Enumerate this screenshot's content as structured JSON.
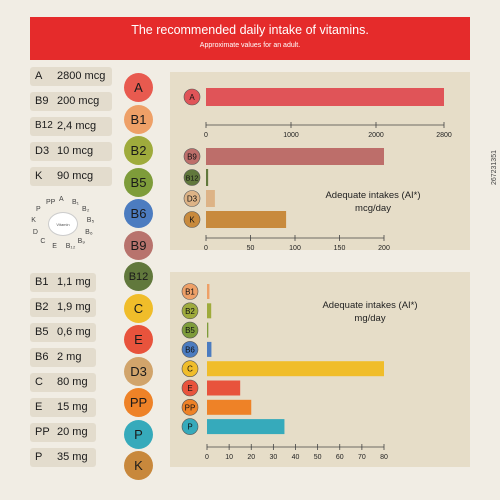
{
  "header": {
    "title": "The recommended daily intake of vitamins.",
    "subtitle": "Approximate values for an adult."
  },
  "left_list_top": [
    {
      "name": "A",
      "value": "2800 mcg"
    },
    {
      "name": "B9",
      "value": "200 mcg"
    },
    {
      "name": "B12",
      "value": "2,4 mcg"
    },
    {
      "name": "D3",
      "value": "10 mcg"
    },
    {
      "name": "K",
      "value": "90 mcg"
    }
  ],
  "left_list_bottom": [
    {
      "name": "B1",
      "value": "1,1 mg"
    },
    {
      "name": "B2",
      "value": "1,9 mg"
    },
    {
      "name": "B5",
      "value": "0,6 mg"
    },
    {
      "name": "B6",
      "value": "2 mg"
    },
    {
      "name": "C",
      "value": "80 mg"
    },
    {
      "name": "E",
      "value": "15 mg"
    },
    {
      "name": "PP",
      "value": "20 mg"
    },
    {
      "name": "P",
      "value": "35 mg"
    }
  ],
  "vitamin_circles": [
    {
      "label": "A",
      "color": "#e85a4f"
    },
    {
      "label": "B1",
      "color": "#eea067"
    },
    {
      "label": "B2",
      "color": "#9fab3c"
    },
    {
      "label": "B5",
      "color": "#7e9c3a"
    },
    {
      "label": "B6",
      "color": "#4c7cc0"
    },
    {
      "label": "B9",
      "color": "#b8736d"
    },
    {
      "label": "B12",
      "color": "#61783c"
    },
    {
      "label": "C",
      "color": "#f0bd2a"
    },
    {
      "label": "E",
      "color": "#e8533c"
    },
    {
      "label": "D3",
      "color": "#d1a46b"
    },
    {
      "label": "PP",
      "color": "#ee8227"
    },
    {
      "label": "P",
      "color": "#36aabb"
    },
    {
      "label": "K",
      "color": "#c8883c"
    }
  ],
  "wheel": {
    "center": "Vitamin",
    "labels": [
      "A",
      "B₁",
      "B₂",
      "B₅",
      "B₆",
      "B₉",
      "B₁₂",
      "E",
      "C",
      "D",
      "K",
      "P",
      "PP"
    ]
  },
  "watermark": "267231351",
  "chart_data": [
    {
      "type": "bar",
      "orientation": "horizontal",
      "categories": [
        "A"
      ],
      "values": [
        2800
      ],
      "colors": [
        "#e05458"
      ],
      "xlim": [
        0,
        2800
      ],
      "ticks": [
        0,
        1000,
        2000,
        2800
      ],
      "tick_labels": [
        "0",
        "1000",
        "2000",
        "2800"
      ],
      "title": "",
      "xlabel": "",
      "ylabel": ""
    },
    {
      "type": "bar",
      "orientation": "horizontal",
      "categories": [
        "B9",
        "B12",
        "D3",
        "K"
      ],
      "values": [
        200,
        2.4,
        10,
        90
      ],
      "colors": [
        "#bd6e6a",
        "#61783c",
        "#ddb386",
        "#c88a3d"
      ],
      "xlim": [
        0,
        200
      ],
      "ticks": [
        0,
        50,
        100,
        150,
        200
      ],
      "tick_labels": [
        "0",
        "50",
        "100",
        "150",
        "200"
      ],
      "annotation": "Adequate intakes (AI*)\nmcg/day",
      "title": "",
      "xlabel": "",
      "ylabel": ""
    },
    {
      "type": "bar",
      "orientation": "horizontal",
      "categories": [
        "B1",
        "B2",
        "B5",
        "B6",
        "C",
        "E",
        "PP",
        "P"
      ],
      "values": [
        1.1,
        1.9,
        0.6,
        2,
        80,
        15,
        20,
        35
      ],
      "colors": [
        "#eea067",
        "#9fab3c",
        "#7e9c3a",
        "#4c7cc0",
        "#f0bd2a",
        "#e8533c",
        "#ee8227",
        "#36aabb"
      ],
      "xlim": [
        0,
        80
      ],
      "ticks": [
        0,
        10,
        20,
        30,
        40,
        50,
        60,
        70,
        80
      ],
      "tick_labels": [
        "0",
        "10",
        "20",
        "30",
        "40",
        "50",
        "60",
        "70",
        "80"
      ],
      "annotation": "Adequate intakes (AI*)\nmg/day",
      "title": "",
      "xlabel": "",
      "ylabel": ""
    }
  ]
}
